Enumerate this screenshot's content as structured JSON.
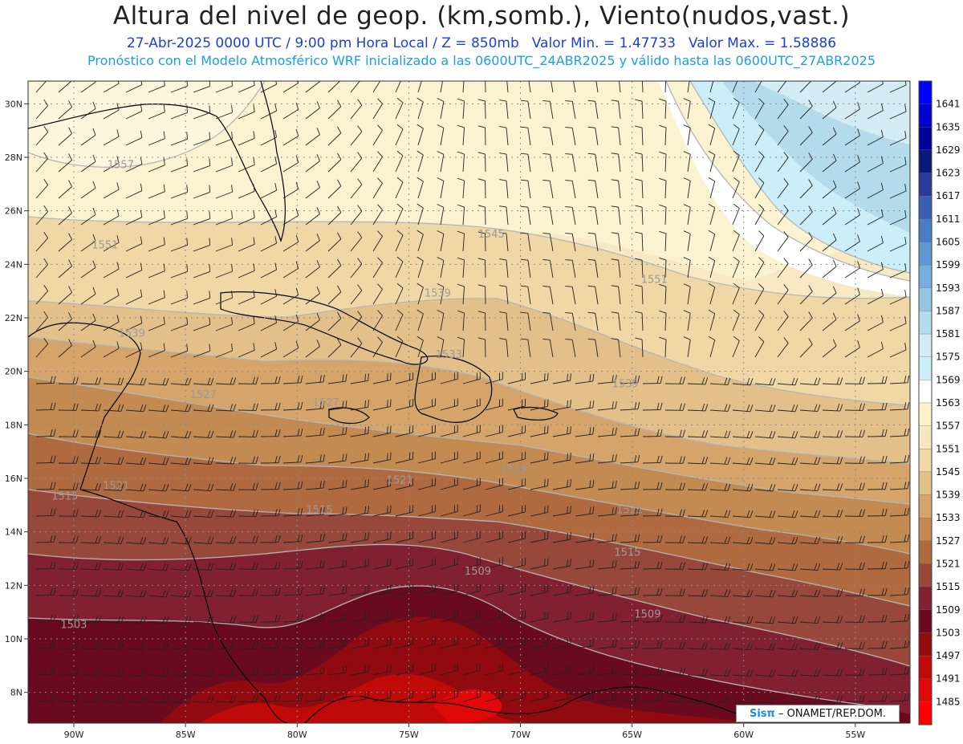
{
  "title": "Altura del nivel de geop. (km,somb.), Viento(nudos,vast.)",
  "subtitle": {
    "datetime": "27-Abr-2025   0000 UTC / 9:00 pm Hora Local / Z = 850mb",
    "min": "Valor Min. = 1.47733",
    "max": "Valor Max. = 1.58886"
  },
  "subtitle2": "Pronóstico con el Modelo Atmosférico WRF inicializado a las 0600UTC_24ABR2025 y válido hasta las  0600UTC_27ABR2025",
  "lat_labels": [
    "30N",
    "28N",
    "26N",
    "24N",
    "22N",
    "20N",
    "18N",
    "16N",
    "14N",
    "12N",
    "10N",
    "8N"
  ],
  "lat_values": [
    30,
    28,
    26,
    24,
    22,
    20,
    18,
    16,
    14,
    12,
    10,
    8
  ],
  "lon_labels": [
    "90W",
    "85W",
    "80W",
    "75W",
    "70W",
    "65W",
    "60W",
    "55W"
  ],
  "lon_values": [
    -90,
    -85,
    -80,
    -75,
    -70,
    -65,
    -60,
    -55
  ],
  "colorbar": {
    "labels": [
      "1641",
      "1635",
      "1629",
      "1623",
      "1617",
      "1611",
      "1605",
      "1599",
      "1593",
      "1587",
      "1581",
      "1575",
      "1569",
      "1563",
      "1557",
      "1551",
      "1545",
      "1539",
      "1533",
      "1527",
      "1521",
      "1515",
      "1509",
      "1503",
      "1497",
      "1491",
      "1485"
    ],
    "colors": [
      "#0000ff",
      "#0000cc",
      "#00009a",
      "#0a1a7a",
      "#2a3a9a",
      "#3a5fb0",
      "#4a7dc4",
      "#6096d2",
      "#78aedc",
      "#94c6e4",
      "#b4dbec",
      "#d4ecf4",
      "#cbeef8",
      "#ffffff",
      "#fbf2cc",
      "#f6e7bf",
      "#efd7a6",
      "#e3c08a",
      "#d4a46a",
      "#c38a52",
      "#b06a40",
      "#98483a",
      "#802030",
      "#6a0a1e",
      "#900a10",
      "#c00a0a",
      "#e00808",
      "#ff0000"
    ]
  },
  "contour_labels": [
    {
      "text": "1557",
      "lon": -88.5,
      "lat": 27.6
    },
    {
      "text": "1551",
      "lon": -89.2,
      "lat": 24.6
    },
    {
      "text": "1545",
      "lon": -71.9,
      "lat": 25.0
    },
    {
      "text": "1539",
      "lon": -74.3,
      "lat": 22.8
    },
    {
      "text": "1533",
      "lon": -73.8,
      "lat": 20.5
    },
    {
      "text": "1539",
      "lon": -88.0,
      "lat": 21.3
    },
    {
      "text": "1527",
      "lon": -84.8,
      "lat": 19.0
    },
    {
      "text": "1527",
      "lon": -79.3,
      "lat": 18.7
    },
    {
      "text": "1551",
      "lon": -64.6,
      "lat": 23.3
    },
    {
      "text": "1539",
      "lon": -65.9,
      "lat": 19.4
    },
    {
      "text": "1533",
      "lon": -70.9,
      "lat": 16.2
    },
    {
      "text": "1521",
      "lon": -76.0,
      "lat": 15.8
    },
    {
      "text": "1521",
      "lon": -88.7,
      "lat": 15.6
    },
    {
      "text": "1515",
      "lon": -91.0,
      "lat": 15.2
    },
    {
      "text": "1515",
      "lon": -79.6,
      "lat": 14.7
    },
    {
      "text": "1521",
      "lon": -65.7,
      "lat": 14.7
    },
    {
      "text": "1515",
      "lon": -65.8,
      "lat": 13.1
    },
    {
      "text": "1509",
      "lon": -72.5,
      "lat": 12.4
    },
    {
      "text": "1509",
      "lon": -64.9,
      "lat": 10.8
    },
    {
      "text": "1503",
      "lon": -90.6,
      "lat": 10.4
    }
  ],
  "credit": {
    "brand": "Sisπ",
    "text": "– ONAMET/REP.DOM."
  }
}
